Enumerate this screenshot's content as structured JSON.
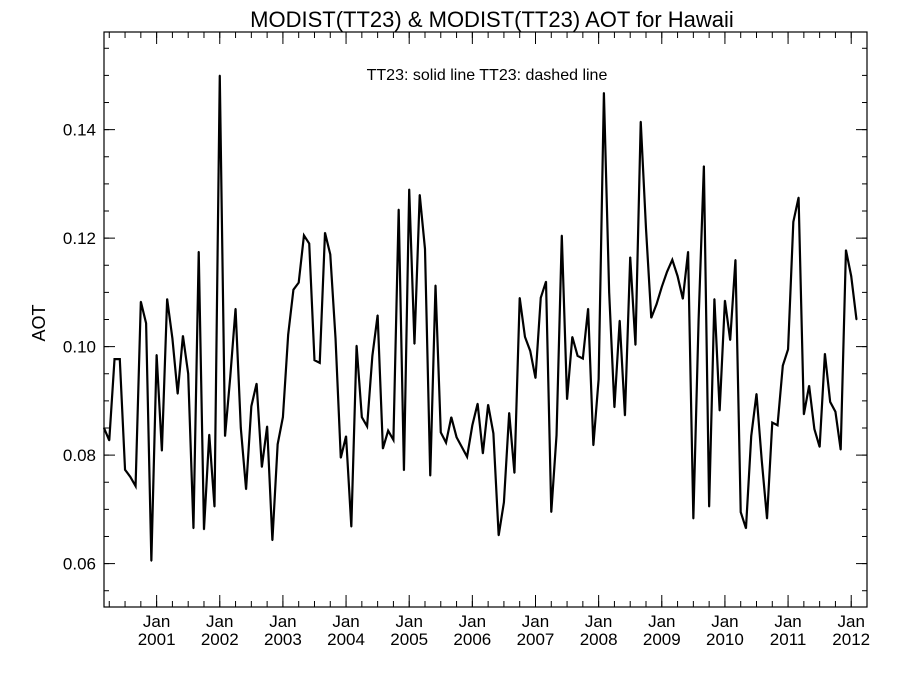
{
  "chart_data": {
    "type": "line",
    "title": "MODIST(TT23) & MODIST(TT23)  AOT for Hawaii",
    "subtitle": "TT23: solid line   TT23: dashed line",
    "xlabel": "",
    "ylabel": "AOT",
    "xlim": [
      "2000-03",
      "2012-04"
    ],
    "ylim": [
      0.052,
      0.158
    ],
    "y_ticks": [
      "0.06",
      "0.08",
      "0.10",
      "0.12",
      "0.14"
    ],
    "x_ticks": [
      {
        "month": "Jan",
        "year": "2001",
        "date": "2001-01"
      },
      {
        "month": "Jan",
        "year": "2002",
        "date": "2002-01"
      },
      {
        "month": "Jan",
        "year": "2003",
        "date": "2003-01"
      },
      {
        "month": "Jan",
        "year": "2004",
        "date": "2004-01"
      },
      {
        "month": "Jan",
        "year": "2005",
        "date": "2005-01"
      },
      {
        "month": "Jan",
        "year": "2006",
        "date": "2006-01"
      },
      {
        "month": "Jan",
        "year": "2007",
        "date": "2007-01"
      },
      {
        "month": "Jan",
        "year": "2008",
        "date": "2008-01"
      },
      {
        "month": "Jan",
        "year": "2009",
        "date": "2009-01"
      },
      {
        "month": "Jan",
        "year": "2010",
        "date": "2010-01"
      },
      {
        "month": "Jan",
        "year": "2011",
        "date": "2011-01"
      },
      {
        "month": "Jan",
        "year": "2012",
        "date": "2012-01"
      }
    ],
    "grid": false,
    "series": [
      {
        "name": "TT23",
        "style": "solid",
        "color": "#000000",
        "start": "2000-03",
        "values": [
          0.085,
          0.0827,
          0.0977,
          0.0977,
          0.0773,
          0.076,
          0.0743,
          0.1083,
          0.1043,
          0.0605,
          0.0985,
          0.0808,
          0.1088,
          0.1015,
          0.0913,
          0.102,
          0.095,
          0.0665,
          0.1175,
          0.0663,
          0.0838,
          0.0705,
          0.15,
          0.0835,
          0.0945,
          0.107,
          0.085,
          0.0737,
          0.089,
          0.0932,
          0.0778,
          0.0853,
          0.0643,
          0.082,
          0.087,
          0.1022,
          0.1105,
          0.1118,
          0.1205,
          0.119,
          0.0975,
          0.097,
          0.121,
          0.117,
          0.1015,
          0.0795,
          0.0835,
          0.0668,
          0.1002,
          0.087,
          0.0853,
          0.0983,
          0.1058,
          0.0812,
          0.0845,
          0.0828,
          0.1253,
          0.0772,
          0.129,
          0.1005,
          0.128,
          0.118,
          0.0762,
          0.1113,
          0.0842,
          0.0823,
          0.087,
          0.0833,
          0.0815,
          0.0797,
          0.0855,
          0.0895,
          0.0803,
          0.0893,
          0.084,
          0.0652,
          0.0713,
          0.0878,
          0.0767,
          0.109,
          0.1018,
          0.0992,
          0.0942,
          0.109,
          0.112,
          0.0695,
          0.0837,
          0.1205,
          0.0903,
          0.1018,
          0.0983,
          0.0978,
          0.107,
          0.0818,
          0.094,
          0.1468,
          0.11,
          0.0888,
          0.1048,
          0.0873,
          0.1165,
          0.1003,
          0.1415,
          0.1218,
          0.1053,
          0.1078,
          0.111,
          0.1138,
          0.116,
          0.113,
          0.1088,
          0.1175,
          0.0683,
          0.105,
          0.1333,
          0.0705,
          0.1088,
          0.0882,
          0.1085,
          0.1012,
          0.116,
          0.0695,
          0.0665,
          0.0835,
          0.0913,
          0.079,
          0.0683,
          0.086,
          0.0855,
          0.0965,
          0.0995,
          0.123,
          0.1275,
          0.0875,
          0.0928,
          0.0848,
          0.0815,
          0.0987,
          0.0898,
          0.088,
          0.081,
          0.1178,
          0.113,
          0.105
        ]
      }
    ]
  }
}
